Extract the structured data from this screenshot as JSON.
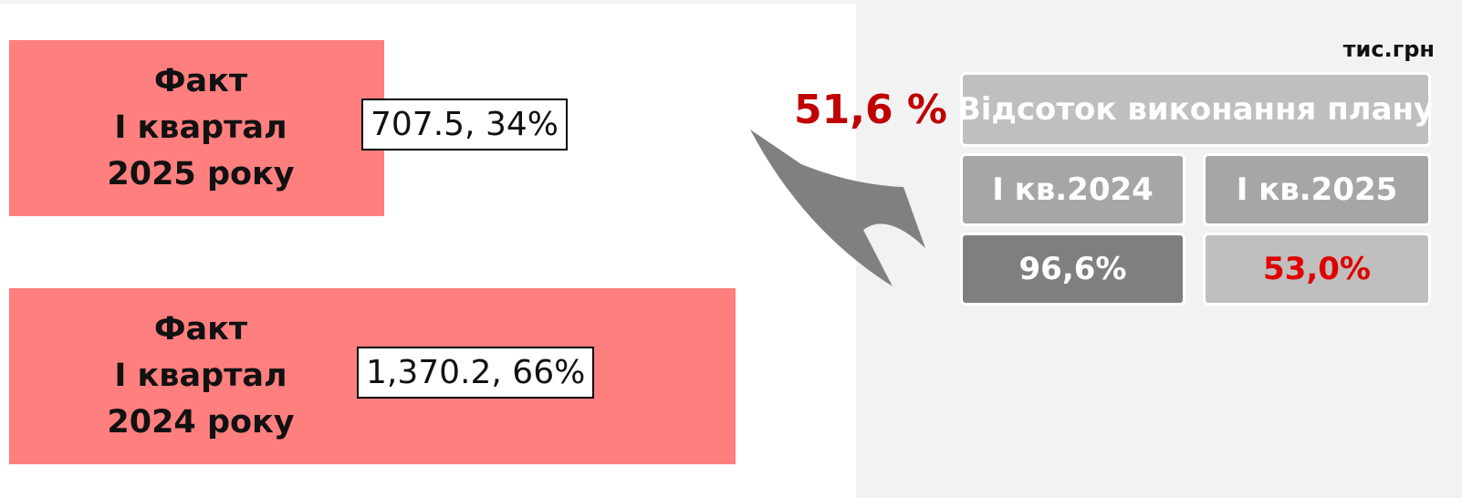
{
  "chart_data": {
    "type": "bar",
    "categories": [
      "Факт\nІ квартал\n2025 року",
      "Факт\nІ квартал\n2024 року"
    ],
    "values": [
      707.5,
      1370.2
    ],
    "value_labels": [
      "707.5, 34%",
      "1,370.2, 66%"
    ],
    "color": "#ff7f7f"
  },
  "panel": {
    "unit": "тис.грн",
    "annotation": "51,6 %",
    "table": {
      "title": "Відсоток виконання плану",
      "columns": [
        "І кв.2024",
        "І кв.2025"
      ],
      "values": [
        "96,6%",
        "53,0%"
      ]
    }
  }
}
